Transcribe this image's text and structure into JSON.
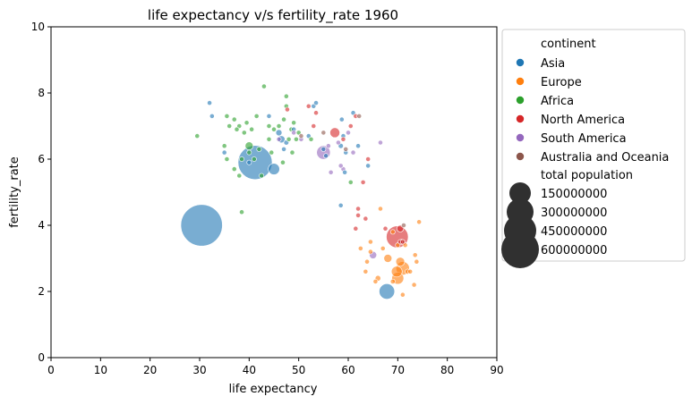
{
  "chart_data": {
    "type": "scatter",
    "title": "life expectancy v/s fertility_rate 1960",
    "xlabel": "life expectancy",
    "ylabel": "fertility_rate",
    "xlim": [
      0,
      90
    ],
    "ylim": [
      0,
      10
    ],
    "xticks": [
      "0",
      "10",
      "20",
      "30",
      "40",
      "50",
      "60",
      "70",
      "80",
      "90"
    ],
    "yticks": [
      "0",
      "2",
      "4",
      "6",
      "8",
      "10"
    ],
    "grid": false,
    "legend": {
      "placement": "outside-right",
      "hue_title": "continent",
      "size_title": "total population",
      "continents": [
        {
          "name": "Asia",
          "color": "#1f77b4"
        },
        {
          "name": "Europe",
          "color": "#ff7f0e"
        },
        {
          "name": "Africa",
          "color": "#2ca02c"
        },
        {
          "name": "North America",
          "color": "#d62728"
        },
        {
          "name": "South America",
          "color": "#9467bd"
        },
        {
          "name": "Australia and Oceania",
          "color": "#8c564b"
        }
      ],
      "sizes": [
        "150000000",
        "300000000",
        "450000000",
        "600000000"
      ]
    },
    "series": [
      {
        "name": "Asia",
        "color": "#1f77b4",
        "points": [
          {
            "x": 30.4,
            "y": 4.0,
            "pop": 667000000
          },
          {
            "x": 41.2,
            "y": 5.9,
            "pop": 450000000
          },
          {
            "x": 45.0,
            "y": 5.7,
            "pop": 50000000
          },
          {
            "x": 67.8,
            "y": 2.0,
            "pop": 93000000
          },
          {
            "x": 32.0,
            "y": 7.7,
            "pop": 3000000
          },
          {
            "x": 32.5,
            "y": 7.3,
            "pop": 2000000
          },
          {
            "x": 35.0,
            "y": 6.2,
            "pop": 3000000
          },
          {
            "x": 40.0,
            "y": 5.9,
            "pop": 2000000
          },
          {
            "x": 44.0,
            "y": 7.3,
            "pop": 2000000
          },
          {
            "x": 46.0,
            "y": 6.8,
            "pop": 15000000
          },
          {
            "x": 46.5,
            "y": 6.6,
            "pop": 20000000
          },
          {
            "x": 47.5,
            "y": 6.5,
            "pop": 10000000
          },
          {
            "x": 47.0,
            "y": 6.3,
            "pop": 5000000
          },
          {
            "x": 49.0,
            "y": 6.9,
            "pop": 3000000
          },
          {
            "x": 52.0,
            "y": 6.7,
            "pop": 2000000
          },
          {
            "x": 53.0,
            "y": 7.6,
            "pop": 2000000
          },
          {
            "x": 53.5,
            "y": 7.7,
            "pop": 1000000
          },
          {
            "x": 55.0,
            "y": 6.3,
            "pop": 3000000
          },
          {
            "x": 55.5,
            "y": 6.1,
            "pop": 5000000
          },
          {
            "x": 58.5,
            "y": 6.4,
            "pop": 10000000
          },
          {
            "x": 58.7,
            "y": 7.2,
            "pop": 8000000
          },
          {
            "x": 59.0,
            "y": 6.7,
            "pop": 5000000
          },
          {
            "x": 59.5,
            "y": 6.2,
            "pop": 3000000
          },
          {
            "x": 59.3,
            "y": 5.6,
            "pop": 2000000
          },
          {
            "x": 61.0,
            "y": 7.4,
            "pop": 2000000
          },
          {
            "x": 62.0,
            "y": 6.4,
            "pop": 1000000
          },
          {
            "x": 64.0,
            "y": 5.8,
            "pop": 2000000
          },
          {
            "x": 58.5,
            "y": 4.6,
            "pop": 3000000
          }
        ]
      },
      {
        "name": "Europe",
        "color": "#ff7f0e",
        "points": [
          {
            "x": 70.0,
            "y": 2.4,
            "pop": 55000000
          },
          {
            "x": 71.0,
            "y": 2.7,
            "pop": 70000000
          },
          {
            "x": 69.8,
            "y": 2.6,
            "pop": 45000000
          },
          {
            "x": 70.5,
            "y": 2.9,
            "pop": 30000000
          },
          {
            "x": 68.0,
            "y": 3.0,
            "pop": 25000000
          },
          {
            "x": 72.0,
            "y": 2.6,
            "pop": 10000000
          },
          {
            "x": 73.5,
            "y": 3.1,
            "pop": 8000000
          },
          {
            "x": 73.3,
            "y": 2.2,
            "pop": 7000000
          },
          {
            "x": 69.0,
            "y": 2.3,
            "pop": 9000000
          },
          {
            "x": 66.0,
            "y": 2.4,
            "pop": 12000000
          },
          {
            "x": 65.5,
            "y": 2.3,
            "pop": 5000000
          },
          {
            "x": 63.5,
            "y": 2.6,
            "pop": 4000000
          },
          {
            "x": 64.5,
            "y": 3.2,
            "pop": 5000000
          },
          {
            "x": 67.0,
            "y": 3.3,
            "pop": 3000000
          },
          {
            "x": 66.5,
            "y": 4.5,
            "pop": 2000000
          },
          {
            "x": 64.5,
            "y": 3.5,
            "pop": 2000000
          },
          {
            "x": 69.0,
            "y": 3.8,
            "pop": 3000000
          },
          {
            "x": 70.0,
            "y": 3.4,
            "pop": 4000000
          },
          {
            "x": 71.5,
            "y": 3.4,
            "pop": 3000000
          },
          {
            "x": 74.3,
            "y": 4.1,
            "pop": 1000000
          },
          {
            "x": 73.8,
            "y": 2.9,
            "pop": 2000000
          },
          {
            "x": 72.5,
            "y": 2.6,
            "pop": 2000000
          },
          {
            "x": 71.0,
            "y": 1.9,
            "pop": 2000000
          },
          {
            "x": 63.8,
            "y": 2.9,
            "pop": 2000000
          },
          {
            "x": 62.5,
            "y": 3.3,
            "pop": 3000000
          }
        ]
      },
      {
        "name": "Africa",
        "color": "#2ca02c",
        "points": [
          {
            "x": 40.0,
            "y": 6.4,
            "pop": 25000000
          },
          {
            "x": 29.5,
            "y": 6.7,
            "pop": 2000000
          },
          {
            "x": 35.5,
            "y": 7.3,
            "pop": 3000000
          },
          {
            "x": 37.0,
            "y": 7.2,
            "pop": 2000000
          },
          {
            "x": 36.0,
            "y": 7.0,
            "pop": 2000000
          },
          {
            "x": 37.5,
            "y": 6.9,
            "pop": 3000000
          },
          {
            "x": 38.0,
            "y": 7.0,
            "pop": 4000000
          },
          {
            "x": 39.0,
            "y": 6.8,
            "pop": 5000000
          },
          {
            "x": 40.5,
            "y": 6.9,
            "pop": 3000000
          },
          {
            "x": 41.5,
            "y": 7.3,
            "pop": 2000000
          },
          {
            "x": 43.0,
            "y": 8.2,
            "pop": 1000000
          },
          {
            "x": 44.0,
            "y": 7.0,
            "pop": 2000000
          },
          {
            "x": 45.0,
            "y": 6.9,
            "pop": 3000000
          },
          {
            "x": 46.0,
            "y": 7.0,
            "pop": 4000000
          },
          {
            "x": 47.5,
            "y": 7.9,
            "pop": 2000000
          },
          {
            "x": 47.5,
            "y": 7.6,
            "pop": 2000000
          },
          {
            "x": 47.0,
            "y": 7.2,
            "pop": 3000000
          },
          {
            "x": 48.5,
            "y": 6.9,
            "pop": 6000000
          },
          {
            "x": 49.0,
            "y": 7.1,
            "pop": 2000000
          },
          {
            "x": 50.0,
            "y": 6.8,
            "pop": 3000000
          },
          {
            "x": 48.0,
            "y": 6.6,
            "pop": 8000000
          },
          {
            "x": 49.5,
            "y": 6.6,
            "pop": 4000000
          },
          {
            "x": 48.7,
            "y": 6.2,
            "pop": 5000000
          },
          {
            "x": 46.8,
            "y": 5.9,
            "pop": 2000000
          },
          {
            "x": 42.0,
            "y": 6.3,
            "pop": 2000000
          },
          {
            "x": 41.0,
            "y": 6.0,
            "pop": 2000000
          },
          {
            "x": 40.0,
            "y": 6.2,
            "pop": 3000000
          },
          {
            "x": 38.5,
            "y": 6.0,
            "pop": 2000000
          },
          {
            "x": 37.0,
            "y": 5.7,
            "pop": 3000000
          },
          {
            "x": 35.5,
            "y": 6.0,
            "pop": 2000000
          },
          {
            "x": 38.0,
            "y": 5.5,
            "pop": 2000000
          },
          {
            "x": 35.0,
            "y": 6.4,
            "pop": 2000000
          },
          {
            "x": 42.5,
            "y": 5.5,
            "pop": 2000000
          },
          {
            "x": 44.5,
            "y": 6.2,
            "pop": 3000000
          },
          {
            "x": 38.5,
            "y": 4.4,
            "pop": 1000000
          },
          {
            "x": 39.5,
            "y": 7.1,
            "pop": 2000000
          },
          {
            "x": 60.5,
            "y": 5.3,
            "pop": 1000000
          },
          {
            "x": 52.5,
            "y": 6.6,
            "pop": 2000000
          },
          {
            "x": 44.0,
            "y": 6.6,
            "pop": 2000000
          }
        ]
      },
      {
        "name": "North America",
        "color": "#d62728",
        "points": [
          {
            "x": 69.9,
            "y": 3.65,
            "pop": 186000000
          },
          {
            "x": 57.3,
            "y": 6.8,
            "pop": 38000000
          },
          {
            "x": 70.5,
            "y": 3.9,
            "pop": 18000000
          },
          {
            "x": 63.5,
            "y": 4.2,
            "pop": 3000000
          },
          {
            "x": 64.0,
            "y": 6.0,
            "pop": 2000000
          },
          {
            "x": 59.0,
            "y": 6.6,
            "pop": 2000000
          },
          {
            "x": 61.5,
            "y": 7.3,
            "pop": 2000000
          },
          {
            "x": 60.5,
            "y": 7.0,
            "pop": 2000000
          },
          {
            "x": 62.0,
            "y": 4.5,
            "pop": 1000000
          },
          {
            "x": 63.0,
            "y": 5.3,
            "pop": 1000000
          },
          {
            "x": 70.5,
            "y": 3.5,
            "pop": 2000000
          },
          {
            "x": 71.0,
            "y": 3.5,
            "pop": 2000000
          },
          {
            "x": 53.0,
            "y": 7.0,
            "pop": 2000000
          },
          {
            "x": 53.5,
            "y": 7.4,
            "pop": 2000000
          },
          {
            "x": 52.0,
            "y": 7.6,
            "pop": 2000000
          },
          {
            "x": 47.7,
            "y": 7.5,
            "pop": 1000000
          },
          {
            "x": 62.0,
            "y": 4.3,
            "pop": 1000000
          },
          {
            "x": 61.5,
            "y": 3.9,
            "pop": 1000000
          },
          {
            "x": 67.5,
            "y": 3.9,
            "pop": 1000000
          }
        ]
      },
      {
        "name": "South America",
        "color": "#9467bd",
        "points": [
          {
            "x": 55.0,
            "y": 6.2,
            "pop": 72000000
          },
          {
            "x": 65.0,
            "y": 3.1,
            "pop": 21000000
          },
          {
            "x": 56.5,
            "y": 5.6,
            "pop": 8000000
          },
          {
            "x": 60.0,
            "y": 6.8,
            "pop": 8000000
          },
          {
            "x": 58.0,
            "y": 6.5,
            "pop": 4000000
          },
          {
            "x": 66.5,
            "y": 6.5,
            "pop": 2000000
          },
          {
            "x": 59.0,
            "y": 5.7,
            "pop": 3000000
          },
          {
            "x": 61.0,
            "y": 6.2,
            "pop": 2000000
          },
          {
            "x": 58.5,
            "y": 5.8,
            "pop": 2000000
          },
          {
            "x": 46.0,
            "y": 6.6,
            "pop": 3000000
          },
          {
            "x": 50.5,
            "y": 6.6,
            "pop": 2000000
          },
          {
            "x": 49.0,
            "y": 6.8,
            "pop": 2000000
          },
          {
            "x": 56.0,
            "y": 6.4,
            "pop": 2000000
          }
        ]
      },
      {
        "name": "Australia and Oceania",
        "color": "#8c564b",
        "points": [
          {
            "x": 70.8,
            "y": 3.5,
            "pop": 10000000
          },
          {
            "x": 71.2,
            "y": 4.0,
            "pop": 2000000
          },
          {
            "x": 55.0,
            "y": 6.8,
            "pop": 1000000
          },
          {
            "x": 50.5,
            "y": 6.7,
            "pop": 1000000
          },
          {
            "x": 62.2,
            "y": 7.3,
            "pop": 1000000
          },
          {
            "x": 59.5,
            "y": 6.3,
            "pop": 1000000
          }
        ]
      }
    ]
  }
}
